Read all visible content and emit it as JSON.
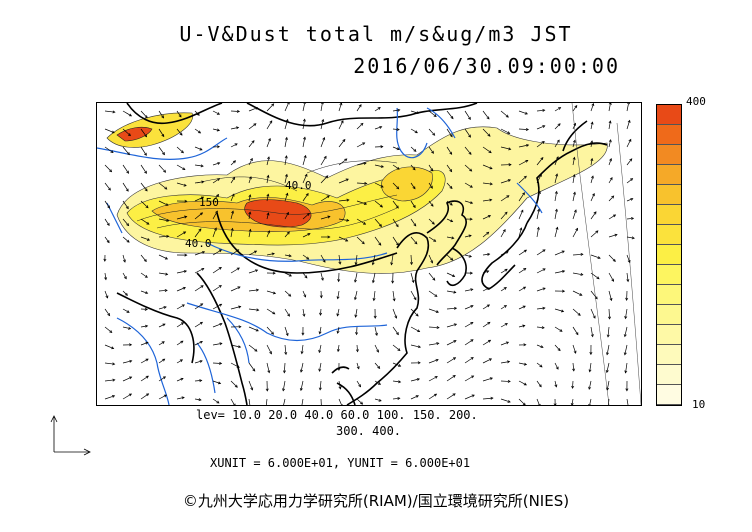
{
  "header": {
    "title": "U-V&Dust total m/s&ug/m3 JST",
    "datetime": "2016/06/30.09:00:00"
  },
  "map": {
    "contour_labels": [
      "150",
      "40.0",
      "40.0"
    ]
  },
  "colorbar": {
    "max_label": "400",
    "min_label": "10",
    "colors": [
      "#e84a17",
      "#ef6a1a",
      "#f28a22",
      "#f5a928",
      "#f8c22d",
      "#fad634",
      "#fbe23c",
      "#fcef45",
      "#fdf560",
      "#fdf77a",
      "#fdf890",
      "#fef9a6",
      "#fefabb",
      "#fefbcf",
      "#fffce2"
    ]
  },
  "footer": {
    "levels_line1": "lev= 10.0 20.0 40.0 60.0 100. 150. 200.",
    "levels_line2": "300. 400.",
    "units": "XUNIT = 6.000E+01, YUNIT = 6.000E+01",
    "copyright": "©九州大学応用力学研究所(RIAM)/国立環境研究所(NIES)"
  }
}
